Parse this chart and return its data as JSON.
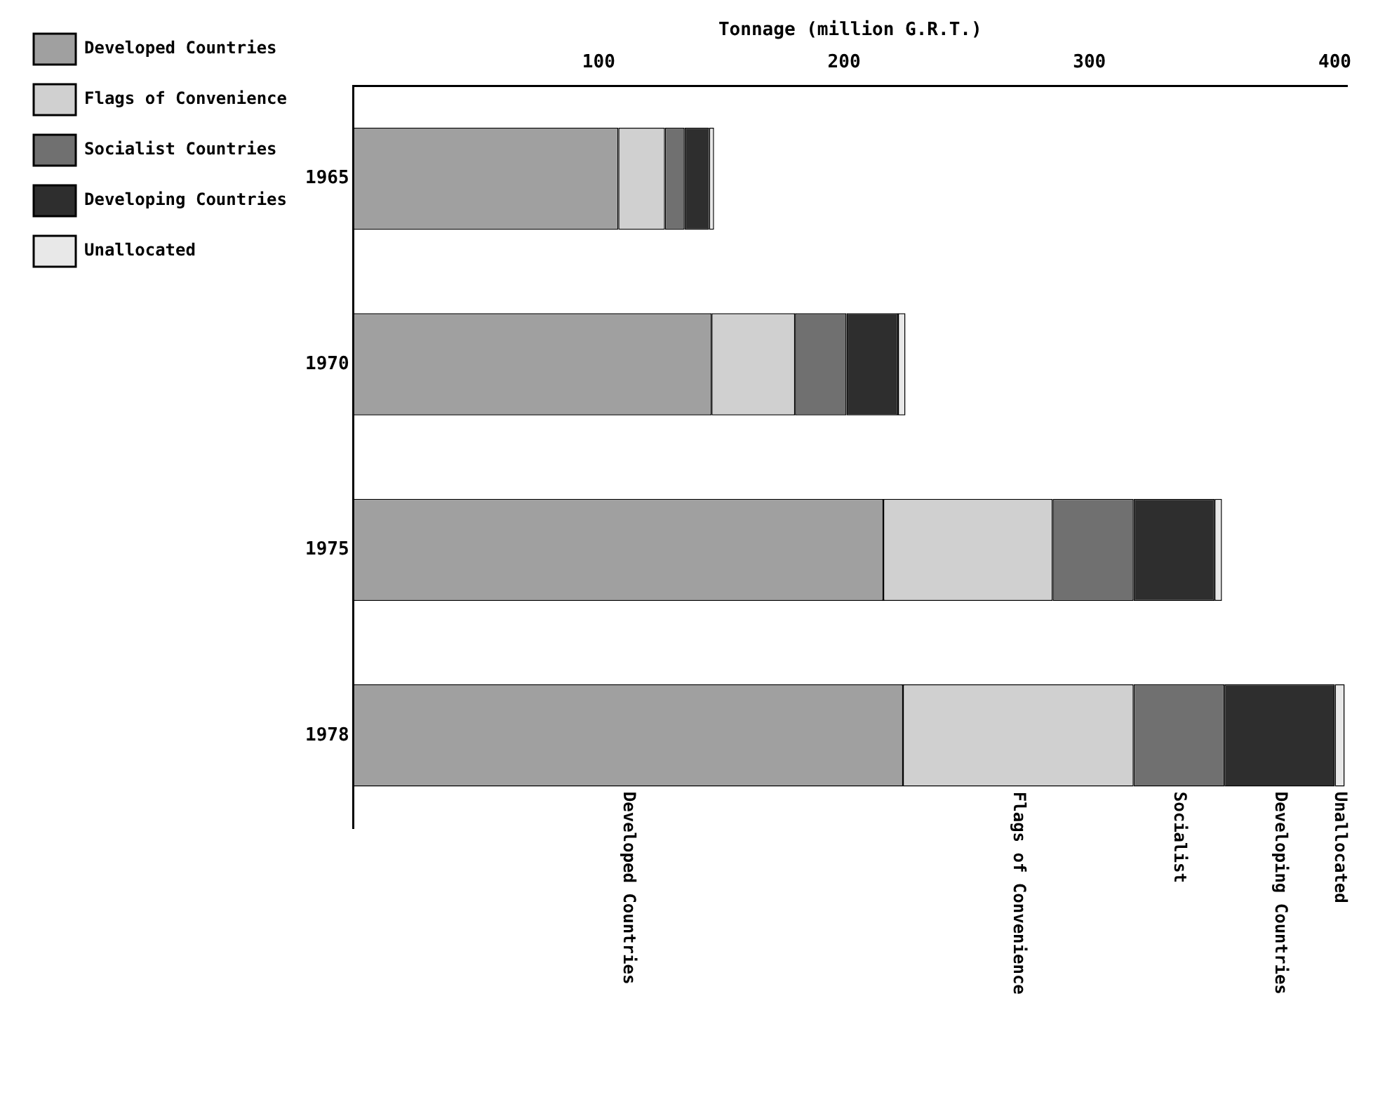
{
  "chart_data": {
    "type": "bar",
    "orientation": "horizontal",
    "stacked": true,
    "xlabel": "Tonnage (million G.R.T.)",
    "categories": [
      "1965",
      "1970",
      "1975",
      "1978"
    ],
    "series": [
      {
        "name": "Developed Countries",
        "color": "#a0a0a0",
        "values": [
          108,
          146,
          216,
          224
        ]
      },
      {
        "name": "Flags of Convenience",
        "color": "#d0d0d0",
        "values": [
          19,
          34,
          69,
          94
        ]
      },
      {
        "name": "Socialist Countries",
        "color": "#707070",
        "values": [
          8,
          21,
          33,
          37
        ]
      },
      {
        "name": "Developing Countries",
        "color": "#2e2e2e",
        "values": [
          10,
          21,
          33,
          45
        ]
      },
      {
        "name": "Unallocated",
        "color": "#e8e8e8",
        "values": [
          2,
          3,
          3,
          4
        ]
      }
    ],
    "xlim": [
      0,
      405
    ],
    "xticks": [
      100,
      200,
      300,
      400
    ],
    "grid": false,
    "legend": "left",
    "annotations": [
      "Developed Countries",
      "Flags of Convenience",
      "Socialist",
      "Developing Countries",
      "Unallocated"
    ]
  }
}
